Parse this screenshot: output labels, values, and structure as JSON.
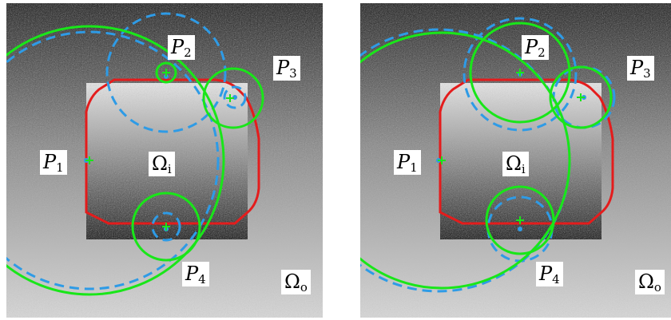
{
  "colors": {
    "contour": "#e41c1c",
    "green": "#19e619",
    "blue": "#2e9be6",
    "inner_top": "#e6e6e6",
    "inner_bottom": "#262626"
  },
  "labels": {
    "p1": {
      "main": "P",
      "sub": "1"
    },
    "p2": {
      "main": "P",
      "sub": "2"
    },
    "p3": {
      "main": "P",
      "sub": "3"
    },
    "p4": {
      "main": "P",
      "sub": "4"
    },
    "omega_i": {
      "main": "Ω",
      "sub": "i"
    },
    "omega_o": {
      "main": "Ω",
      "sub": "o"
    }
  },
  "panels": [
    {
      "green_circles": [
        {
          "c": [
            104,
            197
          ],
          "r": 168
        },
        {
          "c": [
            200,
            87
          ],
          "r": 12
        },
        {
          "c": [
            284,
            119
          ],
          "r": 37
        },
        {
          "c": [
            200,
            280
          ],
          "r": 42
        }
      ],
      "blue_circles": [
        {
          "c": [
            104,
            197
          ],
          "r": 161
        },
        {
          "c": [
            200,
            87
          ],
          "r": 74
        },
        {
          "c": [
            286,
            118
          ],
          "r": 13
        },
        {
          "c": [
            200,
            280
          ],
          "r": 17
        }
      ],
      "green_marks": [
        [
          104,
          197
        ],
        [
          200,
          87
        ],
        [
          280,
          119
        ],
        [
          200,
          280
        ]
      ],
      "blue_marks": [
        [
          100,
          197
        ],
        [
          200,
          92
        ],
        [
          286,
          118
        ],
        [
          200,
          283
        ]
      ]
    },
    {
      "green_circles": [
        {
          "c": [
            102,
            197
          ],
          "r": 160
        },
        {
          "c": [
            200,
            87
          ],
          "r": 62
        },
        {
          "c": [
            276,
            118
          ],
          "r": 38
        },
        {
          "c": [
            200,
            272
          ],
          "r": 42
        }
      ],
      "blue_circles": [
        {
          "c": [
            98,
            197
          ],
          "r": 164
        },
        {
          "c": [
            200,
            89
          ],
          "r": 70
        },
        {
          "c": [
            280,
            118
          ],
          "r": 38
        },
        {
          "c": [
            200,
            283
          ],
          "r": 40
        }
      ],
      "green_marks": [
        [
          102,
          197
        ],
        [
          200,
          87
        ],
        [
          276,
          118
        ],
        [
          200,
          272
        ]
      ],
      "blue_marks": [
        [
          98,
          197
        ],
        [
          200,
          89
        ],
        [
          280,
          118
        ],
        [
          200,
          283
        ]
      ]
    }
  ]
}
